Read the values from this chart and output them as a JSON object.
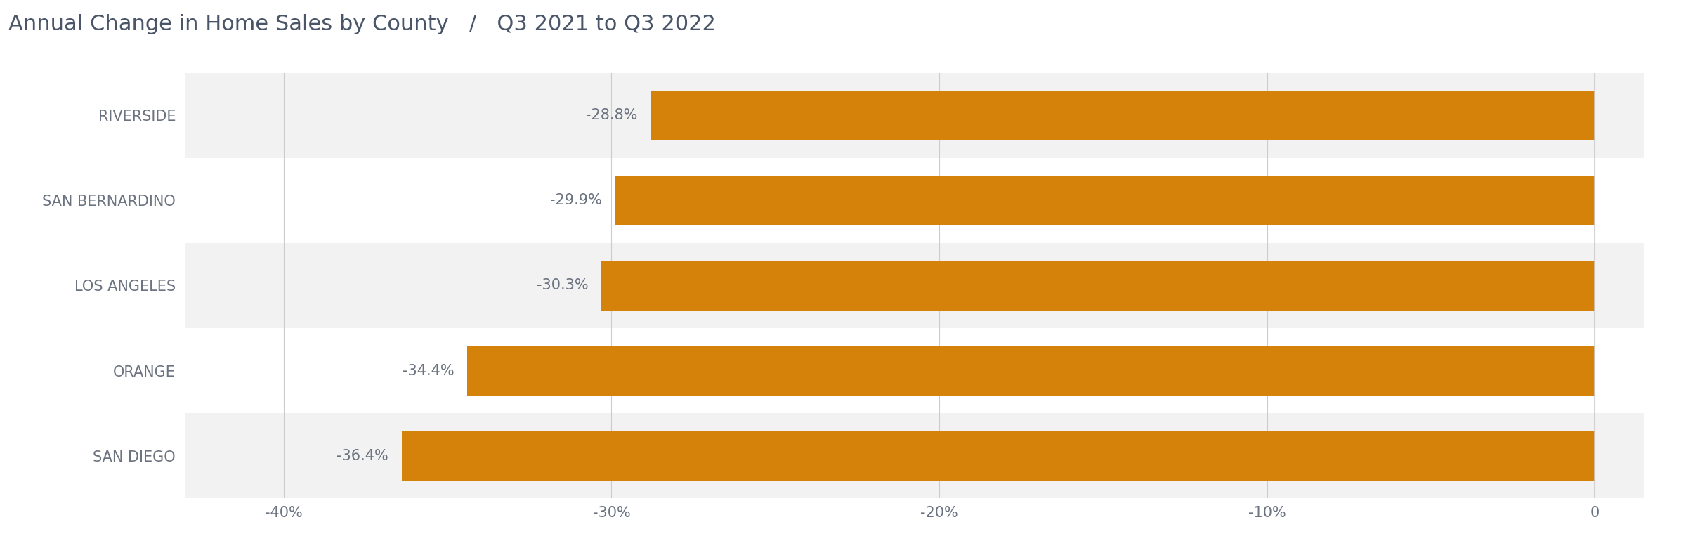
{
  "title_part1": "Annual Change in Home Sales by County",
  "title_separator": "   /   ",
  "title_part2": "Q3 2021 to Q3 2022",
  "counties": [
    "SAN DIEGO",
    "ORANGE",
    "LOS ANGELES",
    "SAN BERNARDINO",
    "RIVERSIDE"
  ],
  "values": [
    -36.4,
    -34.4,
    -30.3,
    -29.9,
    -28.8
  ],
  "value_labels": [
    "-36.4%",
    "-34.4%",
    "-30.3%",
    "-29.9%",
    "-28.8%"
  ],
  "bar_color": "#D4820A",
  "label_color": "#6b7280",
  "title_color": "#4a5568",
  "background_color": "#ffffff",
  "row_bg_odd": "#f2f2f2",
  "row_bg_even": "#ffffff",
  "xlim": [
    -43,
    1.5
  ],
  "xticks": [
    -40,
    -30,
    -20,
    -10,
    0
  ],
  "xticklabels": [
    "-40%",
    "-30%",
    "-20%",
    "-10%",
    "0"
  ],
  "grid_color": "#cccccc",
  "bar_height": 0.58,
  "title_fontsize": 22,
  "tick_fontsize": 15,
  "label_fontsize": 15,
  "county_fontsize": 15
}
